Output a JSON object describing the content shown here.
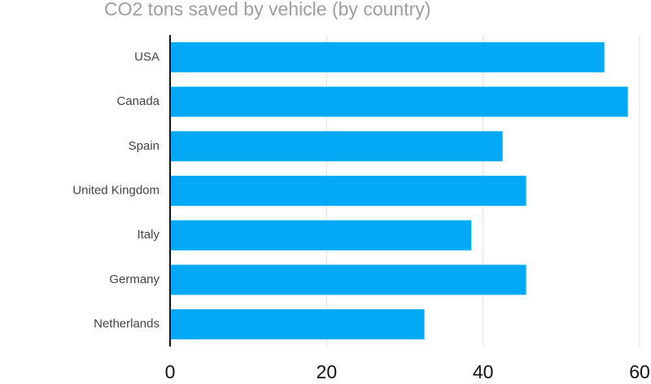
{
  "chart_data": {
    "type": "bar",
    "orientation": "horizontal",
    "title": "CO2 tons saved by vehicle (by country)",
    "xlabel": "",
    "ylabel": "",
    "categories": [
      "USA",
      "Canada",
      "Spain",
      "United Kingdom",
      "Italy",
      "Germany",
      "Netherlands"
    ],
    "values": [
      55.5,
      58.5,
      42.5,
      45.5,
      38.5,
      45.5,
      32.5
    ],
    "xlim": [
      0,
      60
    ],
    "xticks": [
      0,
      20,
      40,
      60
    ],
    "grid": true,
    "legend": "none",
    "bar_color": "#03a9f4"
  }
}
